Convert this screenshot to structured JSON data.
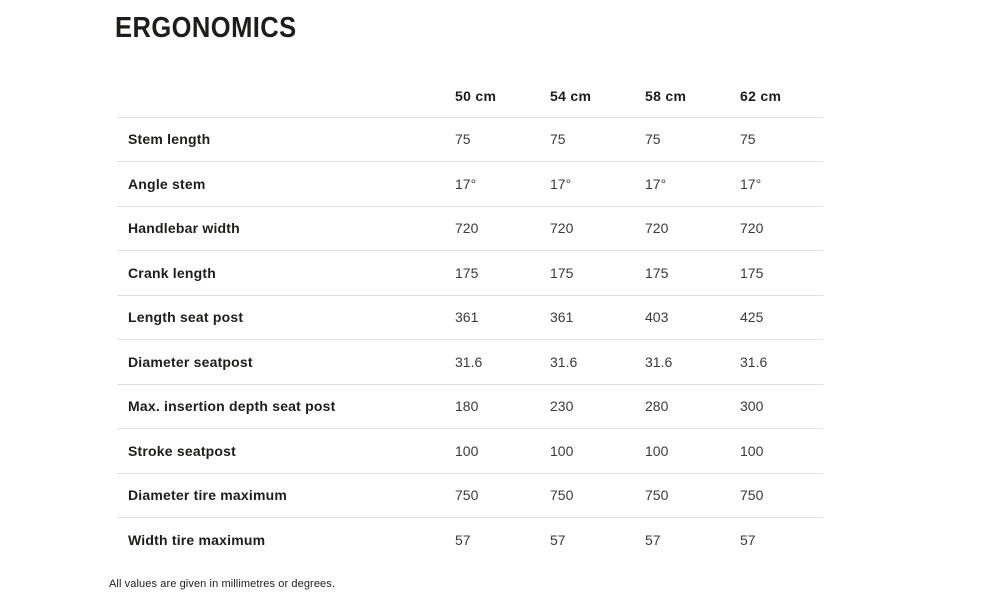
{
  "page": {
    "title": "ERGONOMICS",
    "footnote": "All values are given in millimetres or degrees."
  },
  "colors": {
    "text": "#1d1d1b",
    "value_text": "#3a3a38",
    "border": "#e1e1e1",
    "background": "#ffffff"
  },
  "table": {
    "columns": [
      "50 cm",
      "54 cm",
      "58 cm",
      "62 cm"
    ],
    "rows": [
      {
        "label": "Stem length",
        "values": [
          "75",
          "75",
          "75",
          "75"
        ]
      },
      {
        "label": "Angle stem",
        "values": [
          "17°",
          "17°",
          "17°",
          "17°"
        ]
      },
      {
        "label": "Handlebar width",
        "values": [
          "720",
          "720",
          "720",
          "720"
        ]
      },
      {
        "label": "Crank length",
        "values": [
          "175",
          "175",
          "175",
          "175"
        ]
      },
      {
        "label": "Length seat post",
        "values": [
          "361",
          "361",
          "403",
          "425"
        ]
      },
      {
        "label": "Diameter seatpost",
        "values": [
          "31.6",
          "31.6",
          "31.6",
          "31.6"
        ]
      },
      {
        "label": "Max. insertion depth seat post",
        "values": [
          "180",
          "230",
          "280",
          "300"
        ]
      },
      {
        "label": "Stroke seatpost",
        "values": [
          "100",
          "100",
          "100",
          "100"
        ]
      },
      {
        "label": "Diameter tire maximum",
        "values": [
          "750",
          "750",
          "750",
          "750"
        ]
      },
      {
        "label": "Width tire maximum",
        "values": [
          "57",
          "57",
          "57",
          "57"
        ]
      }
    ]
  }
}
